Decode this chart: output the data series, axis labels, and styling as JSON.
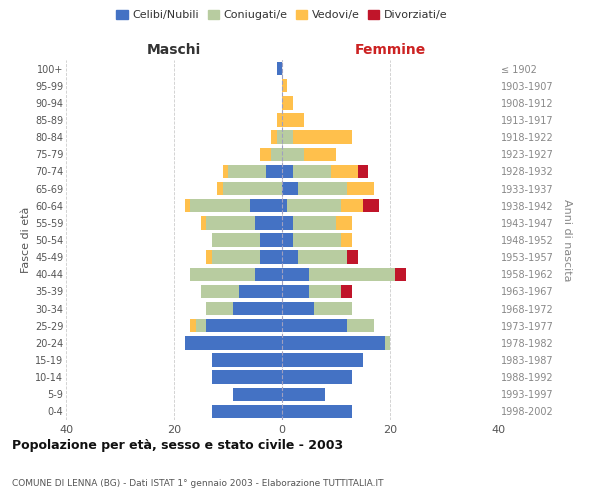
{
  "age_groups": [
    "0-4",
    "5-9",
    "10-14",
    "15-19",
    "20-24",
    "25-29",
    "30-34",
    "35-39",
    "40-44",
    "45-49",
    "50-54",
    "55-59",
    "60-64",
    "65-69",
    "70-74",
    "75-79",
    "80-84",
    "85-89",
    "90-94",
    "95-99",
    "100+"
  ],
  "birth_years": [
    "1998-2002",
    "1993-1997",
    "1988-1992",
    "1983-1987",
    "1978-1982",
    "1973-1977",
    "1968-1972",
    "1963-1967",
    "1958-1962",
    "1953-1957",
    "1948-1952",
    "1943-1947",
    "1938-1942",
    "1933-1937",
    "1928-1932",
    "1923-1927",
    "1918-1922",
    "1913-1917",
    "1908-1912",
    "1903-1907",
    "≤ 1902"
  ],
  "males": {
    "celibi": [
      13,
      9,
      13,
      13,
      18,
      14,
      9,
      8,
      5,
      4,
      4,
      5,
      6,
      0,
      3,
      0,
      0,
      0,
      0,
      0,
      1
    ],
    "coniugati": [
      0,
      0,
      0,
      0,
      0,
      2,
      5,
      7,
      12,
      9,
      9,
      9,
      11,
      11,
      7,
      2,
      1,
      0,
      0,
      0,
      0
    ],
    "vedovi": [
      0,
      0,
      0,
      0,
      0,
      1,
      0,
      0,
      0,
      1,
      0,
      1,
      1,
      1,
      1,
      2,
      1,
      1,
      0,
      0,
      0
    ],
    "divorziati": [
      0,
      0,
      0,
      0,
      0,
      0,
      0,
      0,
      0,
      0,
      0,
      0,
      0,
      0,
      0,
      0,
      0,
      0,
      0,
      0,
      0
    ]
  },
  "females": {
    "nubili": [
      13,
      8,
      13,
      15,
      19,
      12,
      6,
      5,
      5,
      3,
      2,
      2,
      1,
      3,
      2,
      0,
      0,
      0,
      0,
      0,
      0
    ],
    "coniugate": [
      0,
      0,
      0,
      0,
      1,
      5,
      7,
      6,
      16,
      9,
      9,
      8,
      10,
      9,
      7,
      4,
      2,
      0,
      0,
      0,
      0
    ],
    "vedove": [
      0,
      0,
      0,
      0,
      0,
      0,
      0,
      0,
      0,
      0,
      2,
      3,
      4,
      5,
      5,
      6,
      11,
      4,
      2,
      1,
      0
    ],
    "divorziate": [
      0,
      0,
      0,
      0,
      0,
      0,
      0,
      2,
      2,
      2,
      0,
      0,
      3,
      0,
      2,
      0,
      0,
      0,
      0,
      0,
      0
    ]
  },
  "colors": {
    "celibi": "#4472c4",
    "coniugati": "#b8cca0",
    "vedovi": "#ffc04c",
    "divorziati": "#c0152a"
  },
  "xlim": 40,
  "title": "Popolazione per età, sesso e stato civile - 2003",
  "subtitle": "COMUNE DI LENNA (BG) - Dati ISTAT 1° gennaio 2003 - Elaborazione TUTTITALIA.IT",
  "xlabel_left": "Maschi",
  "xlabel_right": "Femmine",
  "ylabel_left": "Fasce di età",
  "ylabel_right": "Anni di nascita",
  "legend_labels": [
    "Celibi/Nubili",
    "Coniugati/e",
    "Vedovi/e",
    "Divorziati/e"
  ],
  "background_color": "#ffffff",
  "grid_color": "#cccccc"
}
